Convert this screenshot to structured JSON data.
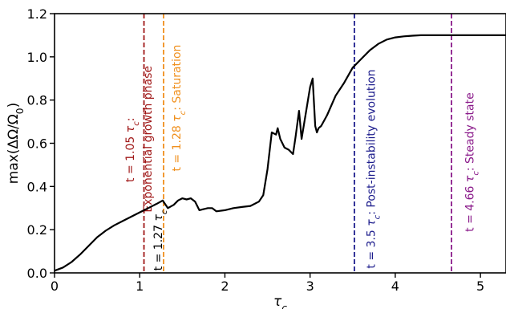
{
  "chart_data": {
    "type": "line",
    "title": "",
    "xlabel": "τc",
    "ylabel": "max(ΔΩ/Ω0)",
    "xlim": [
      0,
      5.3
    ],
    "ylim": [
      0,
      1.2
    ],
    "grid": false,
    "x_ticks": [
      0,
      1,
      2,
      3,
      4,
      5
    ],
    "x_tick_labels": [
      "0",
      "1",
      "2",
      "3",
      "4",
      "5"
    ],
    "y_ticks": [
      0.0,
      0.2,
      0.4,
      0.6,
      0.8,
      1.0,
      1.2
    ],
    "y_tick_labels": [
      "0.0",
      "0.2",
      "0.4",
      "0.6",
      "0.8",
      "1.0",
      "1.2"
    ],
    "series": [
      {
        "color": "#000000",
        "x": [
          0,
          0.1,
          0.2,
          0.3,
          0.4,
          0.5,
          0.6,
          0.7,
          0.8,
          0.9,
          1.0,
          1.1,
          1.2,
          1.27,
          1.33,
          1.4,
          1.45,
          1.5,
          1.55,
          1.6,
          1.65,
          1.7,
          1.75,
          1.8,
          1.85,
          1.9,
          2.0,
          2.1,
          2.2,
          2.3,
          2.4,
          2.45,
          2.5,
          2.55,
          2.6,
          2.62,
          2.65,
          2.7,
          2.75,
          2.8,
          2.83,
          2.87,
          2.9,
          2.95,
          3.0,
          3.03,
          3.06,
          3.08,
          3.1,
          3.13,
          3.2,
          3.3,
          3.4,
          3.5,
          3.6,
          3.7,
          3.8,
          3.9,
          4.0,
          4.1,
          4.2,
          4.3,
          4.4,
          4.5,
          4.6,
          4.8,
          5.0,
          5.3
        ],
        "y": [
          0.01,
          0.025,
          0.05,
          0.085,
          0.125,
          0.165,
          0.195,
          0.22,
          0.24,
          0.26,
          0.28,
          0.3,
          0.32,
          0.335,
          0.3,
          0.315,
          0.335,
          0.345,
          0.34,
          0.345,
          0.33,
          0.29,
          0.295,
          0.3,
          0.3,
          0.285,
          0.29,
          0.3,
          0.305,
          0.31,
          0.33,
          0.36,
          0.48,
          0.65,
          0.64,
          0.67,
          0.62,
          0.58,
          0.57,
          0.55,
          0.63,
          0.75,
          0.62,
          0.74,
          0.86,
          0.9,
          0.68,
          0.65,
          0.67,
          0.68,
          0.73,
          0.82,
          0.88,
          0.95,
          0.99,
          1.03,
          1.06,
          1.08,
          1.09,
          1.095,
          1.098,
          1.1,
          1.1,
          1.1,
          1.1,
          1.1,
          1.1,
          1.1
        ]
      }
    ],
    "vlines": [
      {
        "x": 1.05,
        "color": "#a01818",
        "label": "t = 1.05 τc:",
        "label_x": 0.93
      },
      {
        "x": 1.05,
        "color": "#a01818",
        "label": "Exponential growth phase",
        "label_x": 1.14,
        "extra": true
      },
      {
        "x": 1.28,
        "color": "#f0901e",
        "label": "t = 1.28 τc: Saturation",
        "label_x": 1.48
      },
      {
        "x": 3.52,
        "color": "#1c1c8c",
        "label": "t = 3.5 τc: Post-instability evolution",
        "label_x": 3.76
      },
      {
        "x": 4.66,
        "color": "#8a1a8a",
        "label": "t = 4.66 τc: Steady state",
        "label_x": 4.92
      }
    ],
    "annotations": [
      {
        "text": "t = 1.27 τc",
        "x": 1.26,
        "color": "#000000"
      }
    ]
  }
}
